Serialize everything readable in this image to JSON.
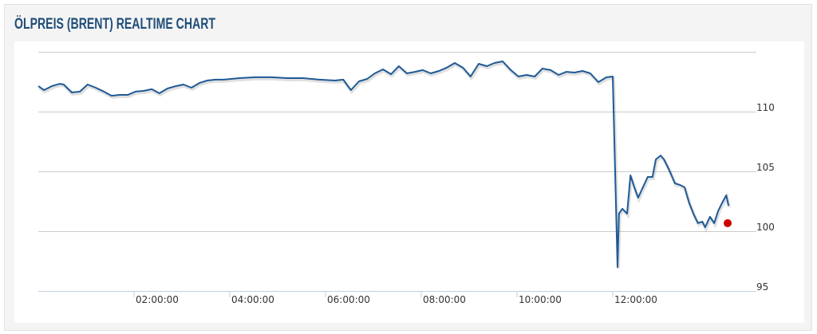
{
  "chart_data": {
    "type": "line",
    "title": "ÖLPREIS (BRENT) REALTIME CHART",
    "x": [
      0,
      0.12,
      0.28,
      0.45,
      0.53,
      0.7,
      0.87,
      1.03,
      1.2,
      1.37,
      1.53,
      1.7,
      1.87,
      2.03,
      2.2,
      2.37,
      2.53,
      2.7,
      2.87,
      3.03,
      3.2,
      3.37,
      3.53,
      3.7,
      3.87,
      4.03,
      4.2,
      4.53,
      4.87,
      5.2,
      5.53,
      5.87,
      6.2,
      6.37,
      6.53,
      6.7,
      6.87,
      7.03,
      7.2,
      7.37,
      7.53,
      7.7,
      7.87,
      8.03,
      8.2,
      8.37,
      8.53,
      8.7,
      8.87,
      9.03,
      9.2,
      9.37,
      9.53,
      9.7,
      9.87,
      10.03,
      10.2,
      10.37,
      10.53,
      10.7,
      10.87,
      11.03,
      11.2,
      11.37,
      11.53,
      11.7,
      11.87,
      12.0,
      12.1,
      12.13,
      12.2,
      12.3,
      12.37,
      12.45,
      12.53,
      12.63,
      12.73,
      12.83,
      12.9,
      13.0,
      13.07,
      13.17,
      13.3,
      13.4,
      13.5,
      13.6,
      13.7,
      13.78,
      13.87,
      13.93,
      14.03,
      14.12,
      14.2,
      14.28,
      14.37,
      14.42
    ],
    "series": [
      {
        "color": "#1f5a96",
        "values": [
          112.13,
          111.8,
          112.13,
          112.33,
          112.27,
          111.6,
          111.67,
          112.27,
          112.0,
          111.67,
          111.33,
          111.4,
          111.4,
          111.67,
          111.73,
          111.87,
          111.53,
          111.93,
          112.13,
          112.27,
          112.0,
          112.4,
          112.6,
          112.67,
          112.67,
          112.73,
          112.8,
          112.87,
          112.87,
          112.8,
          112.8,
          112.67,
          112.6,
          112.67,
          111.8,
          112.53,
          112.73,
          113.2,
          113.53,
          113.13,
          113.8,
          113.2,
          113.33,
          113.47,
          113.2,
          113.4,
          113.67,
          114.07,
          113.67,
          112.93,
          114.0,
          113.8,
          114.07,
          114.2,
          113.47,
          112.93,
          113.07,
          112.93,
          113.6,
          113.47,
          113.07,
          113.33,
          113.27,
          113.4,
          113.2,
          112.47,
          112.87,
          112.93,
          97.0,
          101.47,
          101.87,
          101.47,
          104.67,
          103.67,
          102.8,
          103.67,
          104.53,
          104.53,
          106.0,
          106.33,
          106.0,
          105.2,
          104.0,
          103.87,
          103.67,
          102.33,
          101.33,
          100.67,
          100.8,
          100.33,
          101.2,
          100.67,
          101.67,
          102.33,
          103.0,
          102.13
        ]
      }
    ],
    "current_point": {
      "x": 14.4,
      "y": 100.67,
      "color": "#cc0000"
    },
    "xlim": [
      0,
      15
    ],
    "xticks": [
      {
        "value": 2,
        "label": "02:00:00"
      },
      {
        "value": 4,
        "label": "04:00:00"
      },
      {
        "value": 6,
        "label": "06:00:00"
      },
      {
        "value": 8,
        "label": "08:00:00"
      },
      {
        "value": 10,
        "label": "10:00:00"
      },
      {
        "value": 12,
        "label": "12:00:00"
      }
    ],
    "ylim": [
      95,
      115
    ],
    "yticks": [
      95,
      100,
      105,
      110
    ],
    "grid": true
  }
}
